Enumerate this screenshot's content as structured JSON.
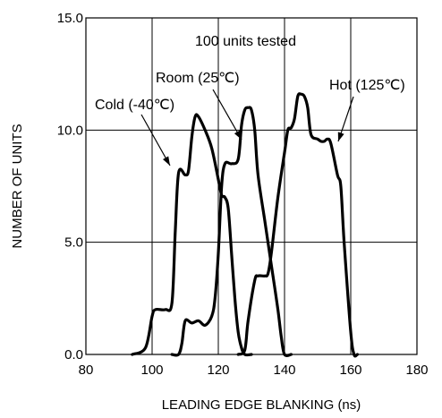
{
  "chart_data": {
    "type": "line",
    "title": "",
    "xlabel": "LEADING EDGE BLANKING (ns)",
    "ylabel": "NUMBER OF UNITS",
    "xlim": [
      80,
      180
    ],
    "ylim": [
      0,
      15
    ],
    "x_ticks": [
      80,
      100,
      120,
      140,
      160,
      180
    ],
    "y_ticks": [
      0,
      5,
      10,
      15
    ],
    "x_tick_labels": [
      "80",
      "100",
      "120",
      "140",
      "160",
      "180"
    ],
    "y_tick_labels": [
      "0.0",
      "5.0",
      "10.0",
      "15.0"
    ],
    "grid": true,
    "note": "100 units tested",
    "series": [
      {
        "name": "Cold (-40℃)",
        "x": [
          94,
          98,
          100,
          101,
          104,
          106,
          107,
          108,
          110,
          111,
          112,
          113,
          114,
          116,
          118,
          120,
          121,
          122,
          123,
          124,
          125,
          126,
          127,
          128,
          130
        ],
        "y": [
          0,
          0.3,
          1.7,
          2.0,
          2.0,
          2.3,
          5.5,
          8.1,
          8.0,
          8.2,
          9.7,
          10.6,
          10.6,
          10.0,
          9.2,
          7.8,
          7.1,
          7.0,
          6.5,
          4.5,
          2.5,
          1.0,
          0.3,
          0.0,
          0.0
        ]
      },
      {
        "name": "Room (25℃)",
        "x": [
          106,
          108,
          109,
          110,
          112,
          114,
          116,
          118,
          119,
          120,
          121,
          122,
          124,
          126,
          127,
          128,
          129,
          130,
          131,
          132,
          134,
          136,
          138,
          139,
          140,
          142
        ],
        "y": [
          0,
          0,
          0.5,
          1.5,
          1.4,
          1.5,
          1.3,
          1.7,
          2.5,
          4.5,
          7.5,
          8.5,
          8.5,
          8.7,
          10.2,
          10.9,
          11.0,
          10.9,
          10.0,
          8.0,
          6.0,
          4.0,
          2.0,
          0.8,
          0.0,
          0.0
        ]
      },
      {
        "name": "Hot (125℃)",
        "x": [
          126,
          128,
          129,
          131,
          132,
          134,
          135,
          136,
          138,
          140,
          141,
          142,
          143,
          144,
          145,
          146,
          147,
          148,
          150,
          151,
          152,
          153,
          154,
          156,
          157,
          158,
          160,
          161,
          162
        ],
        "y": [
          0,
          0.2,
          1.5,
          3.3,
          3.5,
          3.5,
          3.6,
          4.5,
          7.0,
          9.0,
          10.0,
          10.1,
          10.5,
          11.5,
          11.6,
          11.5,
          11.0,
          9.8,
          9.6,
          9.5,
          9.5,
          9.6,
          9.4,
          8.0,
          7.5,
          5.0,
          1.0,
          0.0,
          0.0
        ]
      }
    ]
  }
}
